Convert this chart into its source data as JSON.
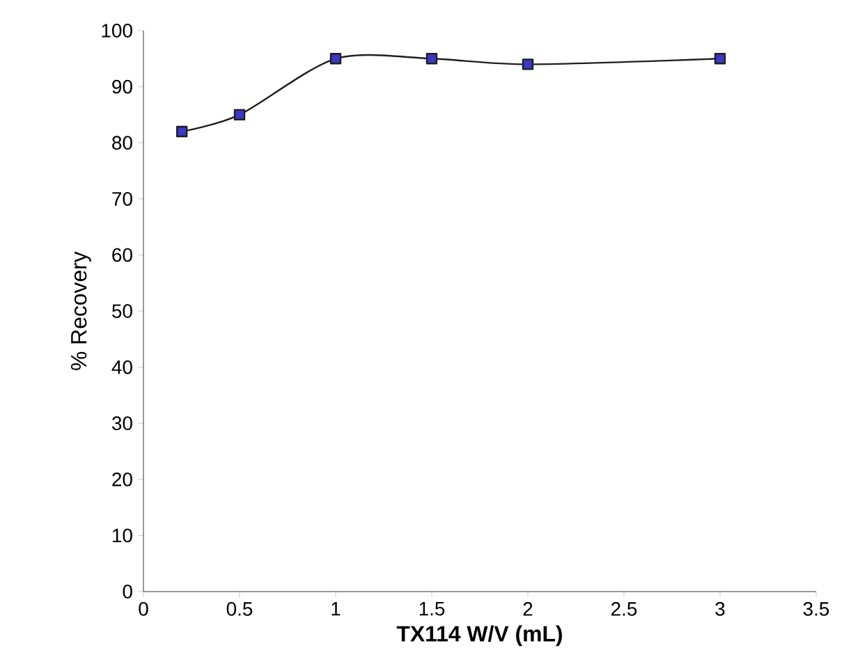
{
  "chart_data": {
    "type": "line",
    "xlabel": "TX114 W/V (mL)",
    "ylabel": "% Recovery",
    "x": [
      0.2,
      0.5,
      1,
      1.5,
      2,
      3
    ],
    "series": [
      {
        "color": "#1f1f1f",
        "values": [
          82,
          85,
          95,
          95,
          94,
          95
        ]
      }
    ],
    "marker": "square",
    "line_style": "solid",
    "grid": false,
    "xlim": [
      0,
      3.5
    ],
    "xticks": [
      0,
      0.5,
      1,
      1.5,
      2,
      2.5,
      3,
      3.5
    ],
    "ylim": [
      0,
      100
    ],
    "yticks": [
      0,
      10,
      20,
      30,
      40,
      50,
      60,
      70,
      80,
      90,
      100
    ]
  }
}
